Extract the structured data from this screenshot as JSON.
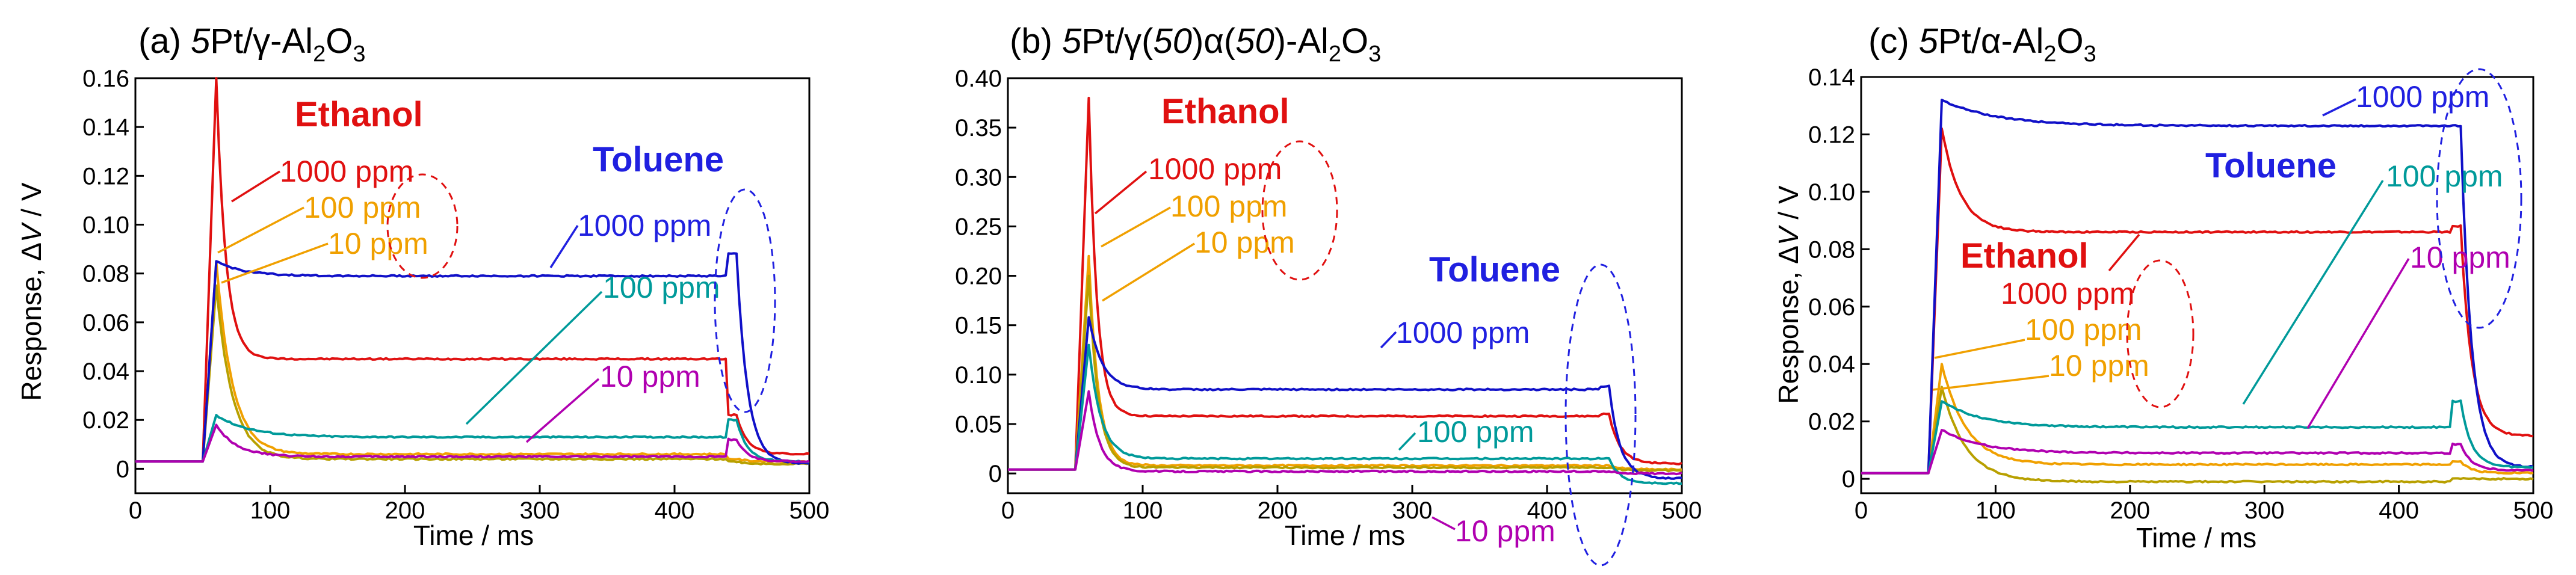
{
  "colors": {
    "ethanol_1000": "#e01010",
    "ethanol_100": "#f0a000",
    "ethanol_10": "#b8a000",
    "toluene_1000": "#1010c8",
    "toluene_100": "#009a9a",
    "toluene_10": "#b000b0",
    "ethanol_label": "#e01010",
    "toluene_label": "#2020e0",
    "ellipse_red": "#e01010",
    "ellipse_blue": "#2020e0"
  },
  "chart_data": [
    {
      "type": "line",
      "title_prefix": "(a) ",
      "title_italic": "5",
      "title_rest": "Pt/γ-Al",
      "title_sub": "2",
      "title_tail": "O",
      "title_sub2": "3",
      "xlabel": "Time / ms",
      "ylabel_pre": "Response, Δ",
      "ylabel_italic": "V",
      "ylabel_post": " / V",
      "xlim": [
        0,
        500
      ],
      "ylim": [
        -0.01,
        0.16
      ],
      "xticks": [
        "0",
        "100",
        "200",
        "300",
        "400",
        "500"
      ],
      "yticks": [
        "0",
        "0.02",
        "0.04",
        "0.06",
        "0.08",
        "0.10",
        "0.12",
        "0.14",
        "0.16"
      ],
      "ytick_values": [
        0,
        0.02,
        0.04,
        0.06,
        0.08,
        0.1,
        0.12,
        0.14,
        0.16
      ],
      "baseline": 0.003,
      "series": [
        {
          "name": "Ethanol 1000 ppm",
          "color_key": "ethanol_1000",
          "peak": 0.16,
          "plateau": 0.045,
          "decay": 7,
          "after": 0.006,
          "end_bump": 0.022
        },
        {
          "name": "Ethanol 100 ppm",
          "color_key": "ethanol_100",
          "peak": 0.085,
          "plateau": 0.006,
          "decay": 12,
          "after": 0.003,
          "end_bump": 0.004
        },
        {
          "name": "Ethanol 10 ppm",
          "color_key": "ethanol_10",
          "peak": 0.075,
          "plateau": 0.004,
          "decay": 12,
          "after": 0.002,
          "end_bump": 0.003
        },
        {
          "name": "Toluene 1000 ppm",
          "color_key": "toluene_1000",
          "peak": 0.085,
          "plateau": 0.079,
          "decay": 20,
          "after": 0.002,
          "end_bump": 0.088
        },
        {
          "name": "Toluene 100 ppm",
          "color_key": "toluene_100",
          "peak": 0.022,
          "plateau": 0.013,
          "decay": 25,
          "after": 0.003,
          "end_bump": 0.02
        },
        {
          "name": "Toluene 10 ppm",
          "color_key": "toluene_10",
          "peak": 0.018,
          "plateau": 0.005,
          "decay": 15,
          "after": 0.003,
          "end_bump": 0.012
        }
      ],
      "annotations": {
        "ethanol": "Ethanol",
        "toluene": "Toluene",
        "e1000": "1000 ppm",
        "e100": "100 ppm",
        "e10": "10 ppm",
        "t1000": "1000 ppm",
        "t100": "100 ppm",
        "t10": "10 ppm"
      }
    },
    {
      "type": "line",
      "title_prefix": "(b) ",
      "title_italic": "5",
      "title_rest": "Pt/γ(",
      "title_italic2": "50",
      "title_mid": ")α(",
      "title_italic3": "50",
      "title_rest2": ")-Al",
      "title_sub": "2",
      "title_tail": "O",
      "title_sub2": "3",
      "xlabel": "Time / ms",
      "xlim": [
        0,
        500
      ],
      "ylim": [
        -0.02,
        0.4
      ],
      "xticks": [
        "0",
        "100",
        "200",
        "300",
        "400",
        "500"
      ],
      "yticks": [
        "0",
        "0.05",
        "0.10",
        "0.15",
        "0.20",
        "0.25",
        "0.30",
        "0.35",
        "0.40"
      ],
      "ytick_values": [
        0,
        0.05,
        0.1,
        0.15,
        0.2,
        0.25,
        0.3,
        0.35,
        0.4
      ],
      "baseline": 0.004,
      "series": [
        {
          "name": "Ethanol 1000 ppm",
          "color_key": "ethanol_1000",
          "peak": 0.38,
          "plateau": 0.058,
          "decay": 6,
          "after": 0.01,
          "end_bump": 0.06
        },
        {
          "name": "Ethanol 100 ppm",
          "color_key": "ethanol_100",
          "peak": 0.22,
          "plateau": 0.008,
          "decay": 7,
          "after": 0.004,
          "end_bump": 0.008
        },
        {
          "name": "Ethanol 10 ppm",
          "color_key": "ethanol_10",
          "peak": 0.2,
          "plateau": 0.006,
          "decay": 7,
          "after": 0.003,
          "end_bump": 0.006
        },
        {
          "name": "Toluene 1000 ppm",
          "color_key": "toluene_1000",
          "peak": 0.158,
          "plateau": 0.085,
          "decay": 10,
          "after": -0.005,
          "end_bump": 0.088
        },
        {
          "name": "Toluene 100 ppm",
          "color_key": "toluene_100",
          "peak": 0.13,
          "plateau": 0.015,
          "decay": 9,
          "after": -0.01,
          "end_bump": 0.015
        },
        {
          "name": "Toluene 10 ppm",
          "color_key": "toluene_10",
          "peak": 0.083,
          "plateau": 0.002,
          "decay": 8,
          "after": 0.0,
          "end_bump": 0.002
        }
      ],
      "annotations": {
        "ethanol": "Ethanol",
        "toluene": "Toluene",
        "e1000": "1000 ppm",
        "e100": "100 ppm",
        "e10": "10 ppm",
        "t1000": "1000 ppm",
        "t100": "100 ppm",
        "t10": "10 ppm"
      }
    },
    {
      "type": "line",
      "title_prefix": "(c) ",
      "title_italic": "5",
      "title_rest": "Pt/α-Al",
      "title_sub": "2",
      "title_tail": "O",
      "title_sub2": "3",
      "xlabel": "Time / ms",
      "ylabel_pre": "Response, Δ",
      "ylabel_italic": "V",
      "ylabel_post": " / V",
      "xlim": [
        0,
        500
      ],
      "ylim": [
        -0.005,
        0.14
      ],
      "xticks": [
        "0",
        "100",
        "200",
        "300",
        "400",
        "500"
      ],
      "yticks": [
        "0",
        "0.02",
        "0.04",
        "0.06",
        "0.08",
        "0.10",
        "0.12",
        "0.14"
      ],
      "ytick_values": [
        0,
        0.02,
        0.04,
        0.06,
        0.08,
        0.1,
        0.12,
        0.14
      ],
      "baseline": 0.002,
      "series": [
        {
          "name": "Ethanol 1000 ppm",
          "color_key": "ethanol_1000",
          "peak": 0.122,
          "plateau": 0.086,
          "decay": 14,
          "after": 0.015,
          "end_bump": 0.088
        },
        {
          "name": "Ethanol 100 ppm",
          "color_key": "ethanol_100",
          "peak": 0.04,
          "plateau": 0.005,
          "decay": 18,
          "after": 0.002,
          "end_bump": 0.006
        },
        {
          "name": "Ethanol 10 ppm",
          "color_key": "ethanol_10",
          "peak": 0.032,
          "plateau": -0.001,
          "decay": 18,
          "after": 0.0,
          "end_bump": 0.0
        },
        {
          "name": "Toluene 1000 ppm",
          "color_key": "toluene_1000",
          "peak": 0.132,
          "plateau": 0.123,
          "decay": 40,
          "after": 0.004,
          "end_bump": 0.123
        },
        {
          "name": "Toluene 100 ppm",
          "color_key": "toluene_100",
          "peak": 0.027,
          "plateau": 0.018,
          "decay": 30,
          "after": 0.004,
          "end_bump": 0.027
        },
        {
          "name": "Toluene 10 ppm",
          "color_key": "toluene_10",
          "peak": 0.017,
          "plateau": 0.009,
          "decay": 30,
          "after": 0.003,
          "end_bump": 0.012
        }
      ],
      "annotations": {
        "ethanol": "Ethanol",
        "toluene": "Toluene",
        "e1000": "1000 ppm",
        "e100": "100 ppm",
        "e10": "10 ppm",
        "t1000": "1000 ppm",
        "t100": "100 ppm",
        "t10": "10 ppm"
      }
    }
  ]
}
